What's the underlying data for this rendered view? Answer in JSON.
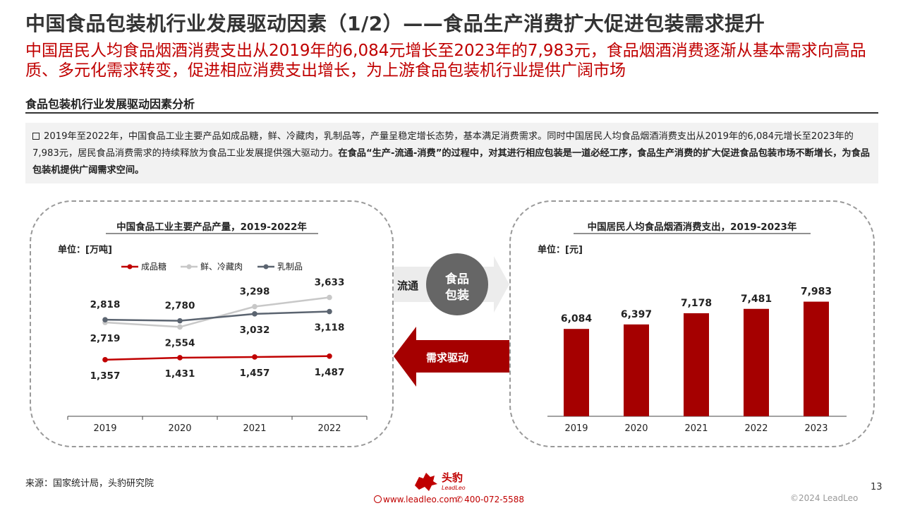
{
  "header": {
    "title": "中国食品包装机行业发展驱动因素（1/2）——食品生产消费扩大促进包装需求提升",
    "subtitle": "中国居民人均食品烟酒消费支出从2019年的6,084元增长至2023年的7,983元，食品烟酒消费逐渐从基本需求向高品质、多元化需求转变，促进相应消费支出增长，为上游食品包装机行业提供广阔市场"
  },
  "section": {
    "title": "食品包装机行业发展驱动因素分析"
  },
  "summary": {
    "normal": "2019年至2022年，中国食品工业主要产品如成品糖，鲜、冷藏肉，乳制品等，产量呈稳定增长态势，基本满足消费需求。同时中国居民人均食品烟酒消费支出从2019年的6,084元增长至2023年的7,983元，居民食品消费需求的持续释放为食品工业发展提供强大驱动力。",
    "bold": "在食品“生产-流通-消费”的过程中，对其进行相应包装是一道必经工序，食品生产消费的扩大促进食品包装市场不断增长，为食品包装机提供广阔需求空间。"
  },
  "middle": {
    "circulation_label": "流通",
    "circle_label_1": "食品",
    "circle_label_2": "包装",
    "demand_label": "需求驱动"
  },
  "chart_data": [
    {
      "type": "line",
      "title": "中国食品工业主要产品产量，2019-2022年",
      "unit": "单位：[万吨]",
      "categories": [
        "2019",
        "2020",
        "2021",
        "2022"
      ],
      "series": [
        {
          "name": "成品糖",
          "values": [
            1357,
            1431,
            1457,
            1487
          ],
          "labels": [
            "1,357",
            "1,431",
            "1,457",
            "1,487"
          ],
          "color": "#c00000"
        },
        {
          "name": "鲜、冷藏肉",
          "values": [
            2719,
            2554,
            3298,
            3633
          ],
          "labels": [
            "2,719",
            "2,554",
            "3,298",
            "3,633"
          ],
          "color": "#c8c8c8"
        },
        {
          "name": "乳制品",
          "values": [
            2818,
            2780,
            3032,
            3118
          ],
          "labels": [
            "2,818",
            "2,780",
            "3,032",
            "3,118"
          ],
          "color": "#5b6470"
        }
      ],
      "legend": "top-left",
      "grid": false
    },
    {
      "type": "bar",
      "title": "中国居民人均食品烟酒消费支出，2019-2023年",
      "unit": "单位：[元]",
      "categories": [
        "2019",
        "2020",
        "2021",
        "2022",
        "2023"
      ],
      "values": [
        6084,
        6397,
        7178,
        7481,
        7983
      ],
      "labels": [
        "6,084",
        "6,397",
        "7,178",
        "7,481",
        "7,983"
      ],
      "color": "#a50000",
      "grid": false
    }
  ],
  "footer": {
    "source": "来源：国家统计局，头豹研究院",
    "brand_cn": "头豹",
    "brand_en": "LeadLeo",
    "website": "www.leadleo.com",
    "phone": "400-072-5588",
    "page": "13",
    "copyright": "©2024 LeadLeo"
  },
  "colors": {
    "accent": "#c00000",
    "dark_red": "#a50000",
    "gray_circle": "#666666"
  },
  "icons": [
    "bullet-square-icon",
    "leopard-logo-icon",
    "globe-icon",
    "phone-icon"
  ]
}
